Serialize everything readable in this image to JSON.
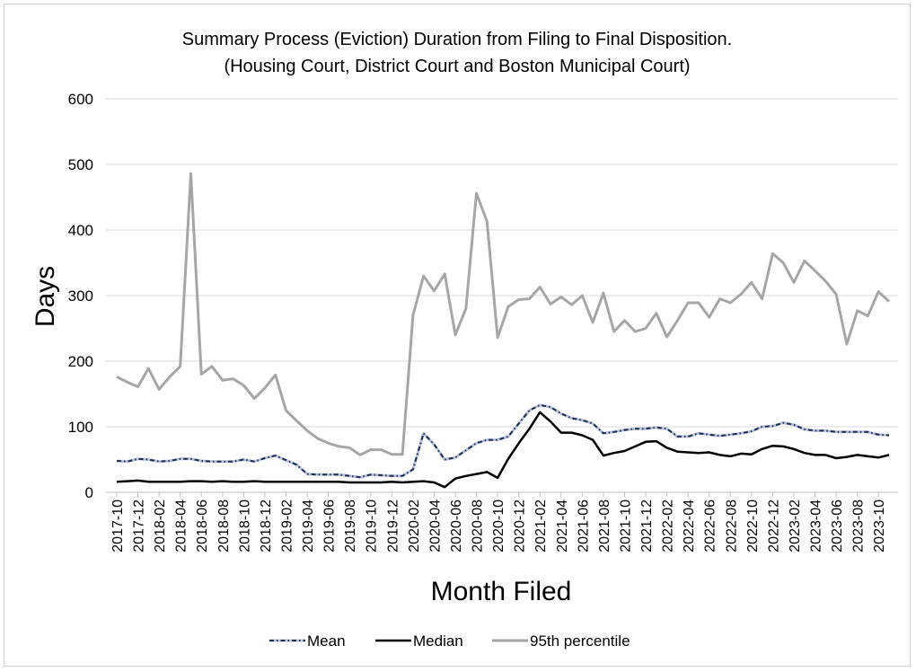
{
  "chart_data": {
    "type": "line",
    "title": "Summary Process (Eviction) Duration from Filing to Final Disposition.",
    "subtitle": "(Housing Court, District Court and Boston Municipal Court)",
    "xlabel": "Month Filed",
    "ylabel": "Days",
    "ylim": [
      0,
      600
    ],
    "yticks": [
      0,
      100,
      200,
      300,
      400,
      500,
      600
    ],
    "grid": true,
    "legend_position": "bottom",
    "x": [
      "2017-10",
      "2017-11",
      "2017-12",
      "2018-01",
      "2018-02",
      "2018-03",
      "2018-04",
      "2018-05",
      "2018-06",
      "2018-07",
      "2018-08",
      "2018-09",
      "2018-10",
      "2018-11",
      "2018-12",
      "2019-01",
      "2019-02",
      "2019-03",
      "2019-04",
      "2019-05",
      "2019-06",
      "2019-07",
      "2019-08",
      "2019-09",
      "2019-10",
      "2019-11",
      "2019-12",
      "2020-01",
      "2020-02",
      "2020-03",
      "2020-04",
      "2020-05",
      "2020-06",
      "2020-07",
      "2020-08",
      "2020-09",
      "2020-10",
      "2020-11",
      "2020-12",
      "2021-01",
      "2021-02",
      "2021-03",
      "2021-04",
      "2021-05",
      "2021-06",
      "2021-07",
      "2021-08",
      "2021-09",
      "2021-10",
      "2021-11",
      "2021-12",
      "2022-01",
      "2022-02",
      "2022-03",
      "2022-04",
      "2022-05",
      "2022-06",
      "2022-07",
      "2022-08",
      "2022-09",
      "2022-10",
      "2022-11",
      "2022-12",
      "2023-01",
      "2023-02",
      "2023-03",
      "2023-04",
      "2023-05",
      "2023-06",
      "2023-07",
      "2023-08",
      "2023-09",
      "2023-10",
      "2023-11"
    ],
    "x_tick_labels": [
      "2017-10",
      "2017-12",
      "2018-02",
      "2018-04",
      "2018-06",
      "2018-08",
      "2018-10",
      "2018-12",
      "2019-02",
      "2019-04",
      "2019-06",
      "2019-08",
      "2019-10",
      "2019-12",
      "2020-02",
      "2020-04",
      "2020-06",
      "2020-08",
      "2020-10",
      "2020-12",
      "2021-02",
      "2021-04",
      "2021-06",
      "2021-08",
      "2021-10",
      "2021-12",
      "2022-02",
      "2022-04",
      "2022-06",
      "2022-08",
      "2022-10",
      "2022-12",
      "2023-02",
      "2023-04",
      "2023-06",
      "2023-08",
      "2023-10"
    ],
    "series": [
      {
        "name": "Mean",
        "color": "#1f2d50",
        "style": "dash-dot",
        "values": [
          48,
          47,
          51,
          50,
          47,
          48,
          51,
          51,
          48,
          47,
          47,
          47,
          50,
          47,
          52,
          56,
          49,
          42,
          28,
          27,
          27,
          27,
          25,
          23,
          27,
          26,
          25,
          25,
          35,
          90,
          73,
          50,
          53,
          64,
          75,
          80,
          80,
          85,
          105,
          125,
          133,
          130,
          120,
          113,
          110,
          105,
          90,
          92,
          95,
          97,
          97,
          99,
          97,
          85,
          85,
          90,
          88,
          86,
          88,
          90,
          93,
          100,
          101,
          106,
          103,
          96,
          94,
          94,
          92,
          92,
          92,
          92,
          88,
          87
        ]
      },
      {
        "name": "Median",
        "color": "#000000",
        "style": "solid",
        "values": [
          16,
          17,
          18,
          16,
          16,
          16,
          16,
          17,
          17,
          16,
          17,
          16,
          16,
          17,
          16,
          16,
          16,
          16,
          16,
          16,
          16,
          16,
          15,
          15,
          15,
          15,
          16,
          15,
          16,
          17,
          15,
          8,
          21,
          25,
          28,
          31,
          22,
          51,
          75,
          97,
          122,
          108,
          91,
          91,
          87,
          80,
          56,
          60,
          63,
          70,
          77,
          78,
          68,
          62,
          61,
          60,
          61,
          57,
          55,
          59,
          58,
          66,
          71,
          70,
          66,
          60,
          57,
          57,
          52,
          54,
          57,
          55,
          53,
          57
        ]
      },
      {
        "name": "95th percentile",
        "color": "#a6a6a6",
        "style": "solid",
        "values": [
          176,
          168,
          161,
          189,
          157,
          176,
          192,
          486,
          180,
          192,
          171,
          173,
          163,
          143,
          159,
          179,
          125,
          109,
          94,
          82,
          75,
          70,
          68,
          57,
          65,
          65,
          58,
          58,
          270,
          330,
          307,
          333,
          240,
          280,
          456,
          413,
          236,
          283,
          294,
          295,
          313,
          287,
          298,
          286,
          300,
          259,
          304,
          245,
          262,
          245,
          250,
          273,
          237,
          262,
          289,
          289,
          267,
          295,
          289,
          302,
          320,
          295,
          364,
          350,
          320,
          353,
          338,
          322,
          302,
          226,
          277,
          269,
          306,
          291
        ]
      }
    ]
  }
}
